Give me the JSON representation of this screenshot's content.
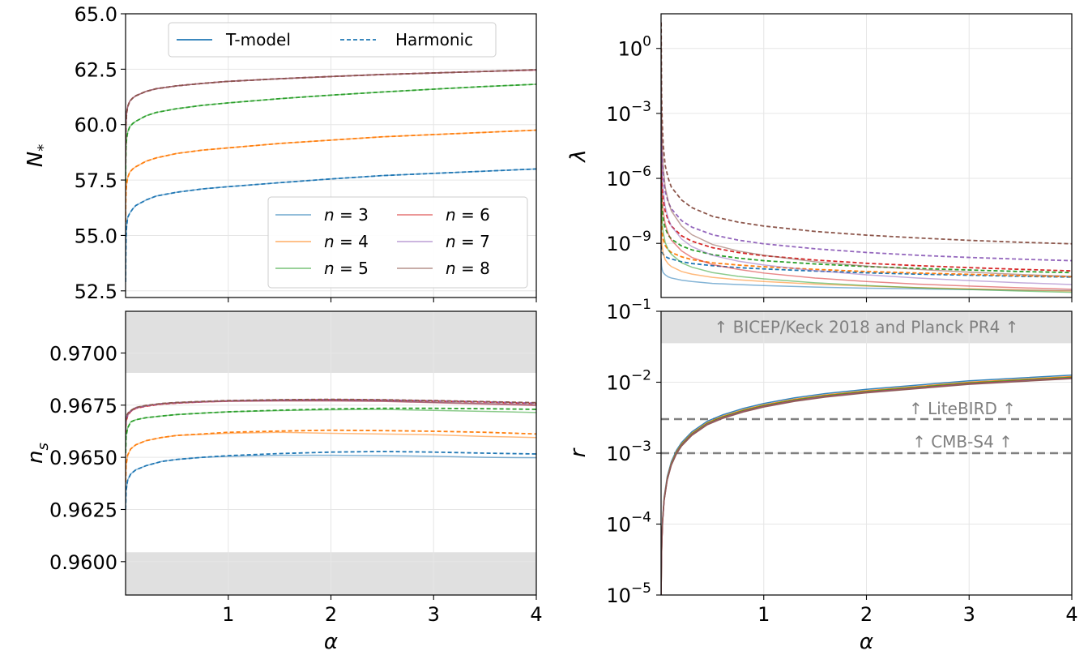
{
  "chart_data": [
    {
      "id": "N",
      "type": "line",
      "ylabel_main": "N",
      "ylabel_sub": "*",
      "xlabel": "",
      "xlim": [
        0,
        4
      ],
      "ylim": [
        52.2,
        65.0
      ],
      "yscale": "linear",
      "xticks": [
        1,
        2,
        3,
        4
      ],
      "xtick_labels": [
        "",
        "",
        "",
        ""
      ],
      "yticks": [
        52.5,
        55.0,
        57.5,
        60.0,
        62.5,
        65.0
      ],
      "ytick_labels": [
        "52.5",
        "55.0",
        "57.5",
        "60.0",
        "62.5",
        "65.0"
      ],
      "grid": true,
      "x": [
        0.0005,
        0.002,
        0.005,
        0.01,
        0.02,
        0.04,
        0.07,
        0.1,
        0.2,
        0.3,
        0.5,
        0.75,
        1.0,
        1.5,
        2.0,
        2.5,
        3.0,
        3.5,
        4.0
      ],
      "series": [
        {
          "n": 3,
          "color": "#1f77b4",
          "tmodel": [
            52.9,
            54.0,
            54.9,
            55.4,
            55.8,
            56.0,
            56.2,
            56.35,
            56.6,
            56.78,
            56.95,
            57.1,
            57.2,
            57.38,
            57.55,
            57.7,
            57.8,
            57.9,
            58.0
          ]
        },
        {
          "n": 4,
          "color": "#ff7f0e",
          "tmodel": [
            55.6,
            56.5,
            57.0,
            57.3,
            57.6,
            57.85,
            58.0,
            58.1,
            58.35,
            58.5,
            58.7,
            58.85,
            58.95,
            59.15,
            59.3,
            59.45,
            59.55,
            59.65,
            59.75
          ]
        },
        {
          "n": 5,
          "color": "#2ca02c",
          "tmodel": [
            57.4,
            58.4,
            59.0,
            59.35,
            59.65,
            59.9,
            60.05,
            60.15,
            60.4,
            60.55,
            60.72,
            60.87,
            60.98,
            61.17,
            61.33,
            61.47,
            61.6,
            61.72,
            61.82
          ]
        },
        {
          "n": 6,
          "color": "#d62728",
          "tmodel": [
            58.2,
            59.4,
            60.1,
            60.5,
            60.8,
            61.05,
            61.2,
            61.3,
            61.5,
            61.62,
            61.75,
            61.86,
            61.95,
            62.07,
            62.17,
            62.26,
            62.33,
            62.4,
            62.46
          ]
        },
        {
          "n": 7,
          "color": "#9467bd",
          "tmodel": [
            58.2,
            59.4,
            60.1,
            60.5,
            60.8,
            61.05,
            61.2,
            61.3,
            61.5,
            61.62,
            61.75,
            61.86,
            61.95,
            62.07,
            62.17,
            62.26,
            62.33,
            62.4,
            62.47
          ]
        },
        {
          "n": 8,
          "color": "#8c564b",
          "tmodel": [
            58.2,
            59.4,
            60.1,
            60.5,
            60.8,
            61.05,
            61.2,
            61.3,
            61.5,
            61.62,
            61.75,
            61.86,
            61.95,
            62.07,
            62.17,
            62.26,
            62.33,
            62.4,
            62.48
          ]
        }
      ],
      "legend_style": {
        "position": "top-center",
        "entries": [
          "T-model",
          "Harmonic"
        ]
      },
      "legend_n": {
        "position": "lower-right",
        "entries": [
          "n = 3",
          "n = 4",
          "n = 5",
          "n = 6",
          "n = 7",
          "n = 8"
        ]
      }
    },
    {
      "id": "ns",
      "type": "line",
      "ylabel_main": "n",
      "ylabel_sub": "s",
      "xlabel": "α",
      "xlim": [
        0,
        4
      ],
      "ylim": [
        0.9584,
        0.972
      ],
      "yscale": "linear",
      "xticks": [
        1,
        2,
        3,
        4
      ],
      "xtick_labels": [
        "1",
        "2",
        "3",
        "4"
      ],
      "yticks": [
        0.96,
        0.9625,
        0.965,
        0.9675,
        0.97
      ],
      "ytick_labels": [
        "0.9600",
        "0.9625",
        "0.9650",
        "0.9675",
        "0.9700"
      ],
      "grid": true,
      "bands": [
        [
          0.9584,
          0.96045
        ],
        [
          0.96905,
          0.972
        ]
      ],
      "x": [
        0.0005,
        0.005,
        0.02,
        0.05,
        0.1,
        0.2,
        0.35,
        0.5,
        0.75,
        1.0,
        1.5,
        2.0,
        2.5,
        3.0,
        3.5,
        4.0
      ],
      "series": [
        {
          "n": 3,
          "color": "#1f77b4",
          "tmodel": [
            0.9625,
            0.9634,
            0.9639,
            0.9642,
            0.9644,
            0.9646,
            0.9648,
            0.9649,
            0.965,
            0.96505,
            0.9651,
            0.9651,
            0.96508,
            0.96505,
            0.965,
            0.96498
          ],
          "harmonic": [
            0.9625,
            0.9634,
            0.9639,
            0.9642,
            0.9644,
            0.9646,
            0.9648,
            0.9649,
            0.965,
            0.96508,
            0.96518,
            0.96525,
            0.96528,
            0.96525,
            0.9652,
            0.96516
          ]
        },
        {
          "n": 4,
          "color": "#ff7f0e",
          "tmodel": [
            0.9638,
            0.9646,
            0.9651,
            0.9654,
            0.9656,
            0.9658,
            0.96595,
            0.96605,
            0.9661,
            0.96615,
            0.9662,
            0.96615,
            0.96612,
            0.96608,
            0.966,
            0.96595
          ],
          "harmonic": [
            0.9638,
            0.9646,
            0.9651,
            0.9654,
            0.9656,
            0.9658,
            0.96595,
            0.96605,
            0.96612,
            0.9662,
            0.96626,
            0.9663,
            0.96628,
            0.96625,
            0.9662,
            0.96612
          ]
        },
        {
          "n": 5,
          "color": "#2ca02c",
          "tmodel": [
            0.9652,
            0.966,
            0.9664,
            0.9667,
            0.9668,
            0.9669,
            0.96698,
            0.96705,
            0.96712,
            0.96718,
            0.96724,
            0.96728,
            0.9673,
            0.96725,
            0.9672,
            0.96715
          ],
          "harmonic": [
            0.9652,
            0.966,
            0.9664,
            0.9667,
            0.9668,
            0.9669,
            0.96698,
            0.96705,
            0.96712,
            0.96718,
            0.96726,
            0.96732,
            0.96735,
            0.96735,
            0.96733,
            0.9673
          ]
        },
        {
          "n": 6,
          "color": "#d62728",
          "tmodel": [
            0.9662,
            0.9667,
            0.967,
            0.9672,
            0.96735,
            0.96745,
            0.96755,
            0.9676,
            0.96765,
            0.96768,
            0.9677,
            0.9677,
            0.96768,
            0.96762,
            0.96755,
            0.96748
          ],
          "harmonic": [
            0.9662,
            0.9667,
            0.967,
            0.9672,
            0.96735,
            0.96745,
            0.96755,
            0.9676,
            0.96766,
            0.9677,
            0.96774,
            0.96776,
            0.96774,
            0.9677,
            0.96765,
            0.96758
          ]
        },
        {
          "n": 7,
          "color": "#9467bd",
          "tmodel": [
            0.9663,
            0.9668,
            0.96705,
            0.96722,
            0.96737,
            0.96747,
            0.96757,
            0.96762,
            0.96766,
            0.96769,
            0.96771,
            0.96771,
            0.96769,
            0.96763,
            0.96757,
            0.9675
          ],
          "harmonic": [
            0.9663,
            0.9668,
            0.96705,
            0.96722,
            0.96737,
            0.96747,
            0.96757,
            0.96762,
            0.96767,
            0.96771,
            0.96775,
            0.96777,
            0.96775,
            0.96771,
            0.96766,
            0.9676
          ]
        },
        {
          "n": 8,
          "color": "#8c564b",
          "tmodel": [
            0.9664,
            0.9669,
            0.9671,
            0.96724,
            0.96739,
            0.96749,
            0.96758,
            0.96763,
            0.96767,
            0.9677,
            0.96772,
            0.96772,
            0.9677,
            0.96764,
            0.96758,
            0.96752
          ],
          "harmonic": [
            0.9664,
            0.9669,
            0.9671,
            0.96724,
            0.96739,
            0.96749,
            0.96758,
            0.96763,
            0.96768,
            0.96772,
            0.96776,
            0.96778,
            0.96776,
            0.96772,
            0.96767,
            0.96762
          ]
        }
      ]
    },
    {
      "id": "lambda",
      "type": "line",
      "ylabel_main": "λ",
      "xlabel": "",
      "xlim": [
        0,
        4
      ],
      "ylim_log10": [
        -11.5,
        1.6
      ],
      "yscale": "log",
      "xticks": [
        1,
        2,
        3,
        4
      ],
      "xtick_labels": [
        "",
        "",
        "",
        ""
      ],
      "yticks_log10": [
        0,
        -3,
        -6,
        -9
      ],
      "ytick_labels": [
        "0",
        "−3",
        "−6",
        "−9"
      ],
      "ytick_base": "10",
      "grid": true,
      "x": [
        0.001,
        0.005,
        0.01,
        0.02,
        0.04,
        0.07,
        0.1,
        0.2,
        0.3,
        0.5,
        0.75,
        1.0,
        1.5,
        2.0,
        2.5,
        3.0,
        3.5,
        4.0
      ],
      "series": [
        {
          "n": 3,
          "color": "#1f77b4",
          "tmodel_log10": [
            -9.7,
            -10.05,
            -10.2,
            -10.35,
            -10.45,
            -10.55,
            -10.6,
            -10.7,
            -10.76,
            -10.85,
            -10.9,
            -10.95,
            -11.02,
            -11.07,
            -11.1,
            -11.13,
            -11.16,
            -11.18
          ],
          "harmonic_log10": [
            -9.1,
            -9.3,
            -9.4,
            -9.5,
            -9.6,
            -9.68,
            -9.72,
            -9.85,
            -9.93,
            -10.03,
            -10.12,
            -10.18,
            -10.28,
            -10.36,
            -10.42,
            -10.47,
            -10.52,
            -10.56
          ]
        },
        {
          "n": 4,
          "color": "#ff7f0e",
          "tmodel_log10": [
            -7.5,
            -8.6,
            -9.1,
            -9.45,
            -9.75,
            -9.95,
            -10.07,
            -10.3,
            -10.42,
            -10.57,
            -10.68,
            -10.76,
            -10.88,
            -10.97,
            -11.04,
            -11.1,
            -11.15,
            -11.2
          ],
          "harmonic_log10": [
            -7.0,
            -8.0,
            -8.5,
            -8.8,
            -9.1,
            -9.3,
            -9.42,
            -9.62,
            -9.75,
            -9.9,
            -10.0,
            -10.08,
            -10.2,
            -10.3,
            -10.37,
            -10.43,
            -10.49,
            -10.54
          ]
        },
        {
          "n": 5,
          "color": "#2ca02c",
          "tmodel_log10": [
            -5.7,
            -7.3,
            -7.9,
            -8.45,
            -8.95,
            -9.3,
            -9.5,
            -9.9,
            -10.1,
            -10.35,
            -10.52,
            -10.64,
            -10.82,
            -10.95,
            -11.05,
            -11.13,
            -11.2,
            -11.26
          ],
          "harmonic_log10": [
            -5.1,
            -6.7,
            -7.3,
            -7.85,
            -8.3,
            -8.62,
            -8.8,
            -9.12,
            -9.3,
            -9.52,
            -9.68,
            -9.8,
            -9.95,
            -10.07,
            -10.16,
            -10.23,
            -10.3,
            -10.35
          ]
        },
        {
          "n": 6,
          "color": "#d62728",
          "tmodel_log10": [
            -3.8,
            -5.9,
            -6.8,
            -7.5,
            -8.1,
            -8.55,
            -8.85,
            -9.35,
            -9.65,
            -9.98,
            -10.2,
            -10.37,
            -10.6,
            -10.76,
            -10.88,
            -10.97,
            -11.05,
            -11.12
          ],
          "harmonic_log10": [
            -3.2,
            -5.3,
            -6.2,
            -6.9,
            -7.5,
            -7.95,
            -8.2,
            -8.65,
            -8.9,
            -9.2,
            -9.42,
            -9.57,
            -9.77,
            -9.92,
            -10.03,
            -10.12,
            -10.2,
            -10.27
          ]
        },
        {
          "n": 7,
          "color": "#9467bd",
          "tmodel_log10": [
            -1.5,
            -4.3,
            -5.4,
            -6.5,
            -7.3,
            -7.85,
            -8.2,
            -8.8,
            -9.15,
            -9.55,
            -9.82,
            -10.0,
            -10.26,
            -10.45,
            -10.6,
            -10.72,
            -10.82,
            -10.9
          ],
          "harmonic_log10": [
            -0.9,
            -3.7,
            -4.8,
            -5.8,
            -6.6,
            -7.1,
            -7.4,
            -7.95,
            -8.25,
            -8.6,
            -8.85,
            -9.02,
            -9.25,
            -9.42,
            -9.55,
            -9.65,
            -9.73,
            -9.8
          ]
        },
        {
          "n": 8,
          "color": "#8c564b",
          "tmodel_log10": [
            0.5,
            -2.8,
            -4.0,
            -5.4,
            -6.4,
            -7.05,
            -7.5,
            -8.2,
            -8.6,
            -9.05,
            -9.35,
            -9.55,
            -9.85,
            -10.05,
            -10.2,
            -10.33,
            -10.44,
            -10.52
          ],
          "harmonic_log10": [
            1.2,
            -2.1,
            -3.2,
            -4.4,
            -5.4,
            -6.0,
            -6.4,
            -7.0,
            -7.35,
            -7.75,
            -8.02,
            -8.2,
            -8.45,
            -8.62,
            -8.75,
            -8.86,
            -8.95,
            -9.02
          ]
        }
      ]
    },
    {
      "id": "r",
      "type": "line",
      "ylabel_main": "r",
      "xlabel": "α",
      "xlim": [
        0,
        4
      ],
      "ylim_log10": [
        -5,
        -1
      ],
      "yscale": "log",
      "xticks": [
        1,
        2,
        3,
        4
      ],
      "xtick_labels": [
        "1",
        "2",
        "3",
        "4"
      ],
      "yticks_log10": [
        -5,
        -4,
        -3,
        -2,
        -1
      ],
      "ytick_labels": [
        "−5",
        "−4",
        "−3",
        "−2",
        "−1"
      ],
      "ytick_base": "10",
      "grid": true,
      "band_log10": [
        -1.45,
        -1
      ],
      "hlines_log10": [
        -2.52,
        -3.0
      ],
      "annotations": [
        "↑  BICEP/Keck 2018 and Planck PR4  ↑",
        "↑  LiteBIRD  ↑",
        "↑  CMB-S4  ↑"
      ],
      "x": [
        0.001,
        0.003,
        0.007,
        0.015,
        0.03,
        0.06,
        0.1,
        0.15,
        0.2,
        0.3,
        0.45,
        0.6,
        0.8,
        1.0,
        1.3,
        1.6,
        2.0,
        2.5,
        3.0,
        3.5,
        4.0
      ],
      "series": [
        {
          "n": 3,
          "color": "#1f77b4",
          "values_log10": [
            -5.0,
            -4.6,
            -4.25,
            -3.92,
            -3.62,
            -3.33,
            -3.12,
            -2.96,
            -2.85,
            -2.7,
            -2.55,
            -2.46,
            -2.37,
            -2.3,
            -2.22,
            -2.16,
            -2.1,
            -2.04,
            -1.98,
            -1.94,
            -1.9
          ]
        },
        {
          "n": 4,
          "color": "#ff7f0e",
          "values_log10": [
            -5.0,
            -4.62,
            -4.27,
            -3.94,
            -3.64,
            -3.35,
            -3.14,
            -2.98,
            -2.87,
            -2.72,
            -2.57,
            -2.48,
            -2.39,
            -2.32,
            -2.24,
            -2.18,
            -2.12,
            -2.06,
            -2.0,
            -1.96,
            -1.92
          ]
        },
        {
          "n": 5,
          "color": "#2ca02c",
          "values_log10": [
            -5.0,
            -4.63,
            -4.28,
            -3.95,
            -3.65,
            -3.36,
            -3.15,
            -2.99,
            -2.88,
            -2.73,
            -2.58,
            -2.49,
            -2.4,
            -2.33,
            -2.25,
            -2.19,
            -2.13,
            -2.07,
            -2.01,
            -1.97,
            -1.93
          ]
        },
        {
          "n": 6,
          "color": "#d62728",
          "values_log10": [
            -5.0,
            -4.64,
            -4.29,
            -3.96,
            -3.66,
            -3.37,
            -3.16,
            -3.0,
            -2.89,
            -2.74,
            -2.59,
            -2.5,
            -2.41,
            -2.34,
            -2.26,
            -2.2,
            -2.14,
            -2.08,
            -2.02,
            -1.98,
            -1.94
          ]
        },
        {
          "n": 7,
          "color": "#9467bd",
          "values_log10": [
            -5.0,
            -4.645,
            -4.295,
            -3.965,
            -3.665,
            -3.375,
            -3.165,
            -3.005,
            -2.895,
            -2.745,
            -2.595,
            -2.505,
            -2.415,
            -2.345,
            -2.265,
            -2.205,
            -2.145,
            -2.085,
            -2.025,
            -1.985,
            -1.945
          ]
        },
        {
          "n": 8,
          "color": "#8c564b",
          "values_log10": [
            -5.0,
            -4.65,
            -4.3,
            -3.97,
            -3.67,
            -3.38,
            -3.17,
            -3.01,
            -2.9,
            -2.75,
            -2.6,
            -2.51,
            -2.42,
            -2.35,
            -2.27,
            -2.21,
            -2.15,
            -2.09,
            -2.03,
            -1.99,
            -1.95
          ]
        }
      ]
    }
  ]
}
